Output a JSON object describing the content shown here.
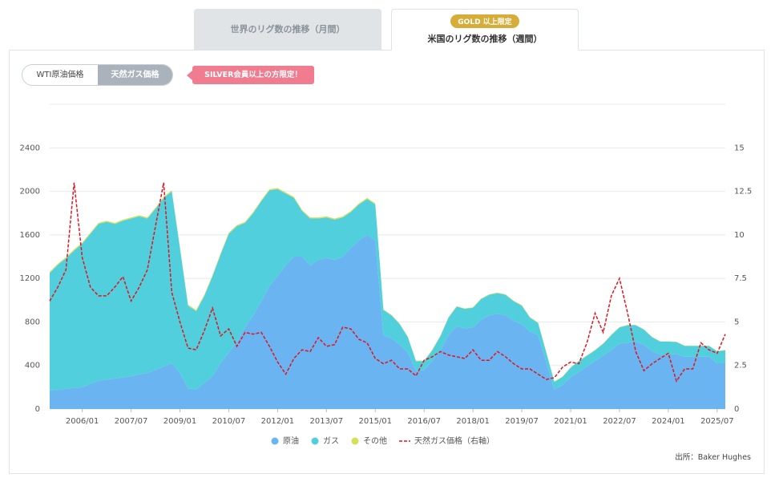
{
  "ui": {
    "tab_world": "世界のリグ数の推移（月間）",
    "tab_us": "米国のリグ数の推移（週間）",
    "badge": "GOLD 以上限定",
    "btn_wti": "WTI原油価格",
    "btn_gas": "天然ガス価格",
    "notice": "SILVER会員以上の方限定！",
    "source": "出所：Baker Hughes"
  },
  "chart_data": {
    "type": "area",
    "x": [
      "2005/01",
      "2005/04",
      "2005/07",
      "2005/10",
      "2006/01",
      "2006/04",
      "2006/07",
      "2006/10",
      "2007/01",
      "2007/04",
      "2007/07",
      "2007/10",
      "2008/01",
      "2008/04",
      "2008/07",
      "2008/10",
      "2009/01",
      "2009/04",
      "2009/07",
      "2009/10",
      "2010/01",
      "2010/04",
      "2010/07",
      "2010/10",
      "2011/01",
      "2011/04",
      "2011/07",
      "2011/10",
      "2012/01",
      "2012/04",
      "2012/07",
      "2012/10",
      "2013/01",
      "2013/04",
      "2013/07",
      "2013/10",
      "2014/01",
      "2014/04",
      "2014/07",
      "2014/10",
      "2015/01",
      "2015/04",
      "2015/07",
      "2015/10",
      "2016/01",
      "2016/04",
      "2016/07",
      "2016/10",
      "2017/01",
      "2017/04",
      "2017/07",
      "2017/10",
      "2018/01",
      "2018/04",
      "2018/07",
      "2018/10",
      "2019/01",
      "2019/04",
      "2019/07",
      "2019/10",
      "2020/01",
      "2020/04",
      "2020/07",
      "2020/10",
      "2021/01",
      "2021/04",
      "2021/07",
      "2021/10",
      "2022/01",
      "2022/04",
      "2022/07",
      "2022/10",
      "2023/01",
      "2023/04",
      "2023/07",
      "2023/10",
      "2024/01",
      "2024/04",
      "2024/07",
      "2024/10",
      "2025/01",
      "2025/04",
      "2025/07",
      "2025/10"
    ],
    "xticks": [
      "2006/01",
      "2007/07",
      "2009/01",
      "2010/07",
      "2012/01",
      "2013/07",
      "2015/01",
      "2016/07",
      "2018/01",
      "2019/07",
      "2021/01",
      "2022/07",
      "2024/01",
      "2025/07"
    ],
    "ylim": [
      0,
      2800
    ],
    "yticks": [
      0,
      400,
      800,
      1200,
      1600,
      2000,
      2400
    ],
    "y2lim": [
      0,
      17.5
    ],
    "y2ticks": [
      0,
      2.5,
      5,
      7.5,
      10,
      12.5,
      15
    ],
    "grid": true,
    "stacked": true,
    "series": [
      {
        "name": "原油",
        "color": "#6ab4f2",
        "values": [
          170,
          175,
          185,
          195,
          200,
          230,
          260,
          270,
          280,
          290,
          300,
          320,
          330,
          360,
          390,
          420,
          330,
          190,
          180,
          240,
          300,
          420,
          520,
          620,
          750,
          860,
          990,
          1130,
          1220,
          1320,
          1400,
          1400,
          1320,
          1370,
          1390,
          1370,
          1400,
          1480,
          1550,
          1600,
          1550,
          680,
          650,
          590,
          520,
          350,
          360,
          440,
          540,
          680,
          760,
          740,
          750,
          820,
          860,
          875,
          860,
          810,
          780,
          710,
          680,
          430,
          180,
          220,
          290,
          340,
          390,
          440,
          490,
          540,
          600,
          610,
          620,
          590,
          530,
          500,
          500,
          505,
          480,
          480,
          480,
          480,
          420,
          420
        ]
      },
      {
        "name": "ガス",
        "color": "#52cfdc",
        "values": [
          1080,
          1150,
          1200,
          1260,
          1320,
          1380,
          1440,
          1450,
          1420,
          1440,
          1450,
          1450,
          1420,
          1480,
          1550,
          1580,
          1150,
          760,
          720,
          800,
          920,
          1000,
          1090,
          1060,
          960,
          940,
          920,
          880,
          800,
          660,
          540,
          420,
          430,
          380,
          370,
          370,
          360,
          330,
          330,
          330,
          330,
          230,
          210,
          190,
          140,
          90,
          80,
          100,
          130,
          160,
          180,
          180,
          180,
          190,
          190,
          190,
          190,
          180,
          170,
          130,
          110,
          90,
          70,
          75,
          90,
          100,
          100,
          100,
          110,
          140,
          150,
          160,
          150,
          140,
          130,
          120,
          120,
          110,
          100,
          100,
          100,
          100,
          110,
          120
        ]
      },
      {
        "name": "その他",
        "color": "#d4e157",
        "values": [
          10,
          10,
          10,
          12,
          10,
          10,
          10,
          10,
          10,
          10,
          10,
          10,
          10,
          10,
          10,
          10,
          10,
          10,
          10,
          10,
          10,
          10,
          10,
          10,
          10,
          10,
          10,
          10,
          10,
          10,
          10,
          10,
          10,
          10,
          10,
          10,
          10,
          10,
          10,
          10,
          10,
          5,
          5,
          5,
          5,
          5,
          5,
          5,
          5,
          5,
          5,
          5,
          5,
          5,
          5,
          5,
          5,
          5,
          5,
          5,
          5,
          5,
          3,
          3,
          3,
          3,
          3,
          3,
          3,
          3,
          3,
          3,
          3,
          3,
          3,
          3,
          3,
          3,
          3,
          3,
          3,
          3,
          3,
          3
        ]
      },
      {
        "name": "天然ガス価格（右軸）",
        "color": "#e0141e",
        "type": "line",
        "dashed": true,
        "axis": "y2",
        "values": [
          6.2,
          7.0,
          8.0,
          13.0,
          8.7,
          7.0,
          6.5,
          6.5,
          7.0,
          7.6,
          6.2,
          7.0,
          8.0,
          10.5,
          13.0,
          6.7,
          5.0,
          3.5,
          3.4,
          4.5,
          5.8,
          4.2,
          4.6,
          3.6,
          4.4,
          4.3,
          4.4,
          3.6,
          2.7,
          2.0,
          2.9,
          3.4,
          3.3,
          4.1,
          3.6,
          3.7,
          4.7,
          4.6,
          4.0,
          3.8,
          2.9,
          2.6,
          2.8,
          2.3,
          2.3,
          1.9,
          2.8,
          3.0,
          3.3,
          3.1,
          3.0,
          2.9,
          3.4,
          2.8,
          2.8,
          3.3,
          3.0,
          2.6,
          2.3,
          2.3,
          2.0,
          1.7,
          1.8,
          2.4,
          2.7,
          2.6,
          3.8,
          5.5,
          4.4,
          6.5,
          7.5,
          5.5,
          3.3,
          2.2,
          2.6,
          2.9,
          3.2,
          1.6,
          2.3,
          2.3,
          3.8,
          3.4,
          3.2,
          4.3
        ]
      }
    ]
  }
}
